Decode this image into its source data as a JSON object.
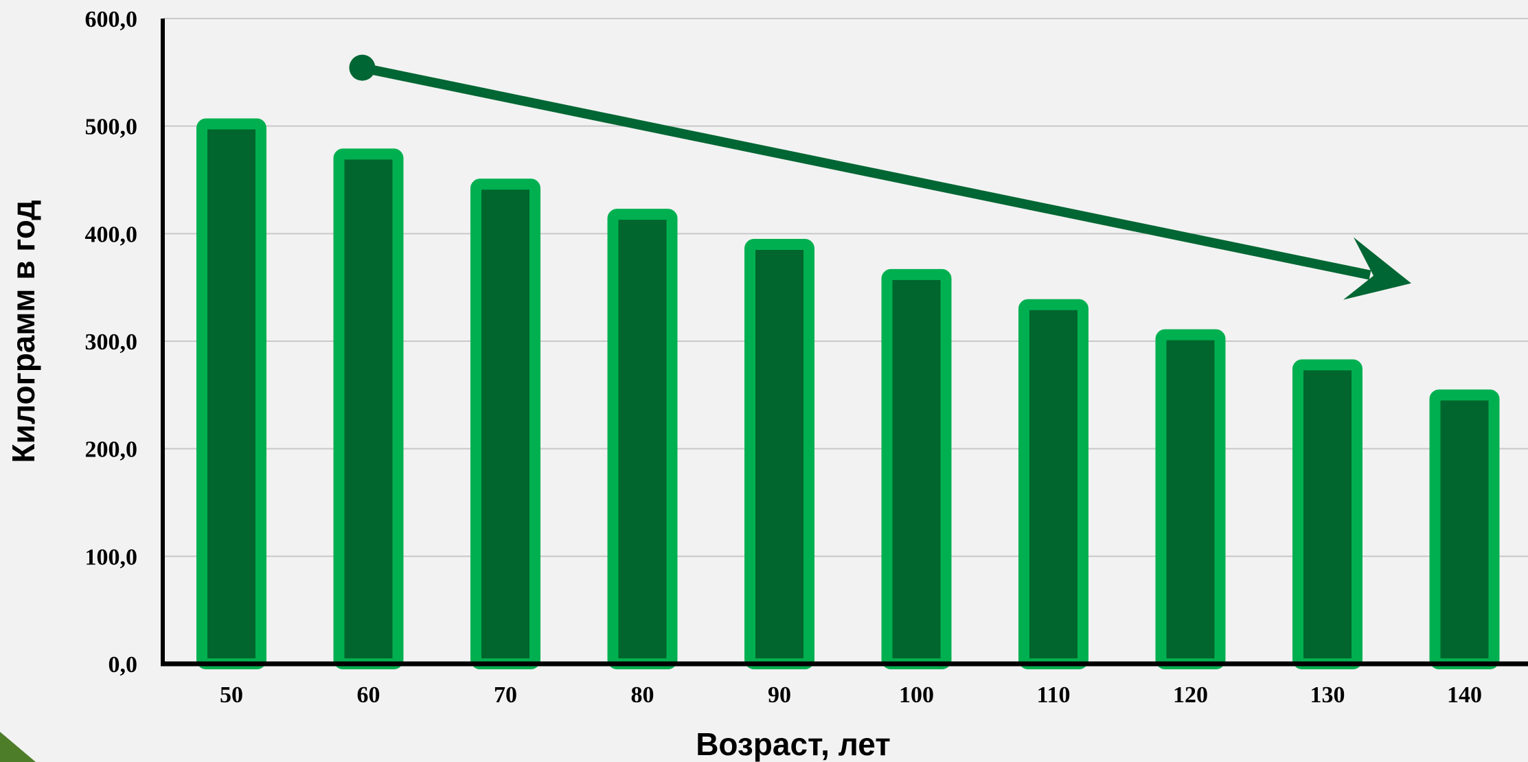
{
  "chart_data": {
    "type": "bar",
    "title": "",
    "xlabel": "Возраст, лет",
    "ylabel": "Килограмм в год",
    "categories": [
      "50",
      "60",
      "70",
      "80",
      "90",
      "100",
      "110",
      "120",
      "130",
      "140"
    ],
    "values": [
      502,
      474,
      446,
      418,
      390,
      362,
      334,
      306,
      278,
      250
    ],
    "yticks": [
      "0,0",
      "100,0",
      "200,0",
      "300,0",
      "400,0",
      "500,0",
      "600,0"
    ],
    "ylim": [
      0,
      600
    ],
    "grid": true,
    "legend": "none",
    "trend_arrow": {
      "direction": "decreasing",
      "start_y": 553,
      "end_y": 350
    },
    "colors": {
      "bar_fill": "#00662d",
      "bar_outline": "#00b050",
      "arrow": "#006633",
      "grid": "#c8c8c8",
      "axis": "#000000",
      "background": "#f2f2f2",
      "corner_accent": "#4e7d2a"
    }
  }
}
